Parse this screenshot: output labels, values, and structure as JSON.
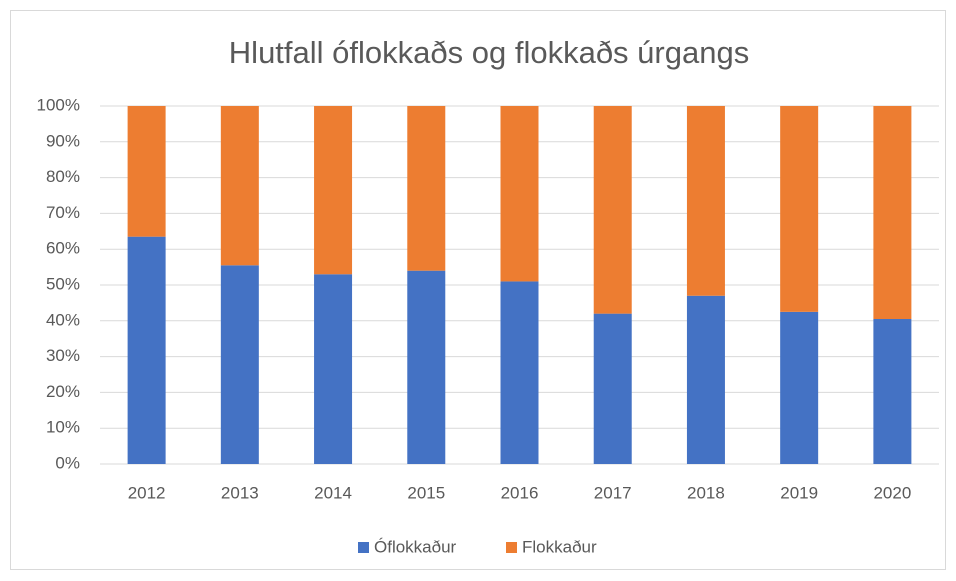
{
  "chart_data": {
    "type": "stacked_bar",
    "title": "Hlutfall óflokkaðs og flokkaðs úrgangs",
    "categories": [
      "2012",
      "2013",
      "2014",
      "2015",
      "2016",
      "2017",
      "2018",
      "2019",
      "2020"
    ],
    "series": [
      {
        "name": "Óflokkaður",
        "color": "#4472c4",
        "values": [
          63.5,
          55.5,
          53,
          54,
          51,
          42,
          47,
          42.5,
          40.5
        ]
      },
      {
        "name": "Flokkaður",
        "color": "#ed7d31",
        "values": [
          36.5,
          44.5,
          47,
          46,
          49,
          58,
          53,
          57.5,
          59.5
        ]
      }
    ],
    "ylim": [
      0,
      100
    ],
    "yticks": [
      {
        "value": 0,
        "label": "0%"
      },
      {
        "value": 10,
        "label": "10%"
      },
      {
        "value": 20,
        "label": "20%"
      },
      {
        "value": 30,
        "label": "30%"
      },
      {
        "value": 40,
        "label": "40%"
      },
      {
        "value": 50,
        "label": "50%"
      },
      {
        "value": 60,
        "label": "60%"
      },
      {
        "value": 70,
        "label": "70%"
      },
      {
        "value": 80,
        "label": "80%"
      },
      {
        "value": 90,
        "label": "90%"
      },
      {
        "value": 100,
        "label": "100%"
      }
    ],
    "grid": true,
    "legend": "bottom"
  }
}
